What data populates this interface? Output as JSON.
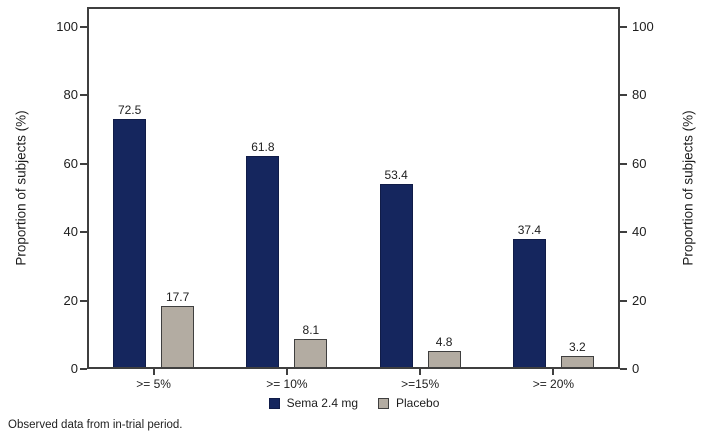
{
  "chart_data": {
    "type": "bar",
    "title": "",
    "categories": [
      ">= 5%",
      ">= 10%",
      ">=15%",
      ">= 20%"
    ],
    "series": [
      {
        "name": "Sema 2.4 mg",
        "color": "#15265e",
        "border": "#101c48",
        "values": [
          72.5,
          61.8,
          53.4,
          37.4
        ]
      },
      {
        "name": "Placebo",
        "color": "#b3aca2",
        "border": "#3f3f3f",
        "values": [
          17.7,
          8.1,
          4.8,
          3.2
        ]
      }
    ],
    "ylabel_left": "Proportion of subjects (%)",
    "ylabel_right": "Proportion of subjects (%)",
    "yticks": [
      0,
      20,
      40,
      60,
      80,
      100
    ],
    "ylim": [
      0,
      100
    ],
    "grid": false,
    "legend_position": "bottom"
  },
  "footnote": "Observed data from in-trial period."
}
